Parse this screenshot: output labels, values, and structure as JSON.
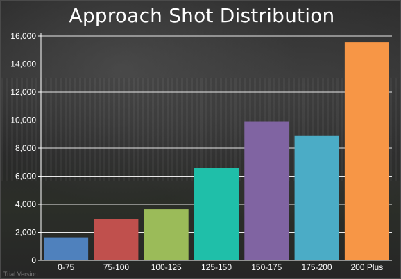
{
  "chart_data": {
    "type": "bar",
    "title": "Approach Shot Distribution",
    "categories": [
      "0-75",
      "75-100",
      "100-125",
      "125-150",
      "150-175",
      "175-200",
      "200 Plus"
    ],
    "values": [
      1600,
      2950,
      3650,
      6600,
      9900,
      8900,
      15550
    ],
    "colors": [
      "#4f81bd",
      "#c0504d",
      "#9bbb59",
      "#1fbfa9",
      "#8064a2",
      "#4bacc6",
      "#f79646"
    ],
    "ylim": [
      0,
      16000
    ],
    "yticks": [
      "0",
      "2,000",
      "4,000",
      "6,000",
      "8,000",
      "10,000",
      "12,000",
      "14,000",
      "16,000"
    ],
    "ytick_values": [
      0,
      2000,
      4000,
      6000,
      8000,
      10000,
      12000,
      14000,
      16000
    ],
    "grid": true,
    "xlabel": "",
    "ylabel": ""
  },
  "watermark": "Trial Version"
}
